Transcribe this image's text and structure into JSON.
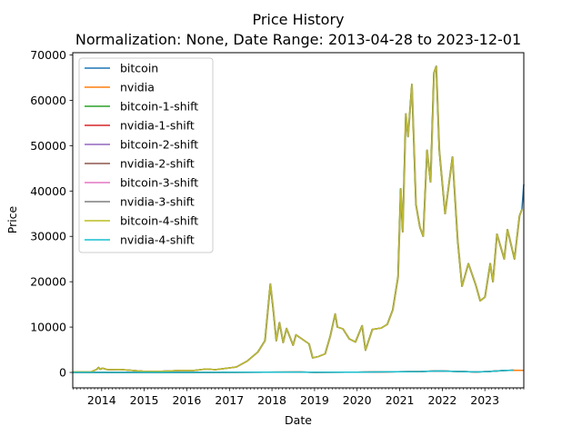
{
  "chart_data": {
    "type": "line",
    "title": "Price History",
    "subtitle": "Normalization: None, Date Range: 2013-04-28 to 2023-12-01",
    "xlabel": "Date",
    "ylabel": "Price",
    "xlim": [
      "2013-04-28",
      "2023-12-01"
    ],
    "ylim": [
      -3400,
      70500
    ],
    "x_ticks": [
      "2014",
      "2015",
      "2016",
      "2017",
      "2018",
      "2019",
      "2020",
      "2021",
      "2022",
      "2023"
    ],
    "y_ticks": [
      0,
      10000,
      20000,
      30000,
      40000,
      50000,
      60000,
      70000
    ],
    "y_tick_labels": [
      "0",
      "10000",
      "20000",
      "30000",
      "40000",
      "50000",
      "60000",
      "70000"
    ],
    "grid": false,
    "legend_position": "top-left",
    "series": [
      {
        "name": "bitcoin",
        "color": "#1f77b4",
        "points": [
          [
            "2013-04-28",
            135
          ],
          [
            "2013-10-01",
            125
          ],
          [
            "2013-11-20",
            700
          ],
          [
            "2013-12-04",
            1100
          ],
          [
            "2013-12-20",
            650
          ],
          [
            "2014-01-05",
            950
          ],
          [
            "2014-02-20",
            600
          ],
          [
            "2014-06-01",
            650
          ],
          [
            "2014-09-01",
            480
          ],
          [
            "2015-01-15",
            200
          ],
          [
            "2015-06-01",
            250
          ],
          [
            "2015-11-05",
            420
          ],
          [
            "2016-03-01",
            420
          ],
          [
            "2016-06-15",
            750
          ],
          [
            "2016-09-01",
            600
          ],
          [
            "2017-01-01",
            1000
          ],
          [
            "2017-03-01",
            1200
          ],
          [
            "2017-06-01",
            2500
          ],
          [
            "2017-09-01",
            4500
          ],
          [
            "2017-11-01",
            7000
          ],
          [
            "2017-12-17",
            19500
          ],
          [
            "2018-01-10",
            14000
          ],
          [
            "2018-02-06",
            7000
          ],
          [
            "2018-03-05",
            11000
          ],
          [
            "2018-04-06",
            6600
          ],
          [
            "2018-05-05",
            9700
          ],
          [
            "2018-06-30",
            6000
          ],
          [
            "2018-07-25",
            8300
          ],
          [
            "2018-11-14",
            6300
          ],
          [
            "2018-12-15",
            3200
          ],
          [
            "2019-02-01",
            3500
          ],
          [
            "2019-04-01",
            4100
          ],
          [
            "2019-05-15",
            8000
          ],
          [
            "2019-06-26",
            12900
          ],
          [
            "2019-07-15",
            10000
          ],
          [
            "2019-09-01",
            9600
          ],
          [
            "2019-10-25",
            7400
          ],
          [
            "2019-12-17",
            6700
          ],
          [
            "2020-02-12",
            10300
          ],
          [
            "2020-03-12",
            4900
          ],
          [
            "2020-05-10",
            9500
          ],
          [
            "2020-07-25",
            9800
          ],
          [
            "2020-09-15",
            10600
          ],
          [
            "2020-11-01",
            13800
          ],
          [
            "2020-12-16",
            21000
          ],
          [
            "2021-01-08",
            40500
          ],
          [
            "2021-01-25",
            31000
          ],
          [
            "2021-02-21",
            57000
          ],
          [
            "2021-03-12",
            52000
          ],
          [
            "2021-04-14",
            63500
          ],
          [
            "2021-05-19",
            37000
          ],
          [
            "2021-06-22",
            32000
          ],
          [
            "2021-07-20",
            30000
          ],
          [
            "2021-08-22",
            49000
          ],
          [
            "2021-09-21",
            42000
          ],
          [
            "2021-10-20",
            66000
          ],
          [
            "2021-11-09",
            67500
          ],
          [
            "2021-12-05",
            49000
          ],
          [
            "2022-01-24",
            35000
          ],
          [
            "2022-03-28",
            47500
          ],
          [
            "2022-05-12",
            29000
          ],
          [
            "2022-06-18",
            19000
          ],
          [
            "2022-08-12",
            24000
          ],
          [
            "2022-10-15",
            19200
          ],
          [
            "2022-11-21",
            15800
          ],
          [
            "2023-01-01",
            16600
          ],
          [
            "2023-02-15",
            24000
          ],
          [
            "2023-03-10",
            20000
          ],
          [
            "2023-04-14",
            30500
          ],
          [
            "2023-06-15",
            25000
          ],
          [
            "2023-07-13",
            31500
          ],
          [
            "2023-09-11",
            25000
          ],
          [
            "2023-10-24",
            34500
          ],
          [
            "2023-11-15",
            36000
          ],
          [
            "2023-12-01",
            41500
          ]
        ]
      },
      {
        "name": "nvidia",
        "color": "#ff7f0e",
        "points": [
          [
            "2013-04-28",
            3
          ],
          [
            "2016-01-01",
            8
          ],
          [
            "2016-12-31",
            25
          ],
          [
            "2018-09-01",
            68
          ],
          [
            "2018-12-24",
            32
          ],
          [
            "2019-12-31",
            58
          ],
          [
            "2020-09-01",
            130
          ],
          [
            "2021-06-30",
            200
          ],
          [
            "2021-11-29",
            333
          ],
          [
            "2022-10-13",
            112
          ],
          [
            "2023-02-01",
            210
          ],
          [
            "2023-06-15",
            430
          ],
          [
            "2023-09-01",
            485
          ],
          [
            "2023-12-01",
            467
          ]
        ]
      },
      {
        "name": "bitcoin-1-shift",
        "color": "#2ca02c",
        "source": "bitcoin",
        "shift_days": 1
      },
      {
        "name": "nvidia-1-shift",
        "color": "#d62728",
        "source": "nvidia",
        "shift_days": 1
      },
      {
        "name": "bitcoin-2-shift",
        "color": "#9467bd",
        "source": "bitcoin",
        "shift_days": 2
      },
      {
        "name": "nvidia-2-shift",
        "color": "#8c564b",
        "source": "nvidia",
        "shift_days": 2
      },
      {
        "name": "bitcoin-3-shift",
        "color": "#e377c2",
        "source": "bitcoin",
        "shift_days": 3
      },
      {
        "name": "nvidia-3-shift",
        "color": "#7f7f7f",
        "source": "nvidia",
        "shift_days": 3
      },
      {
        "name": "bitcoin-4-shift",
        "color": "#bcbd22",
        "source": "bitcoin",
        "shift_days": 4
      },
      {
        "name": "nvidia-4-shift",
        "color": "#17becf",
        "source": "nvidia",
        "shift_days": 4
      }
    ]
  }
}
